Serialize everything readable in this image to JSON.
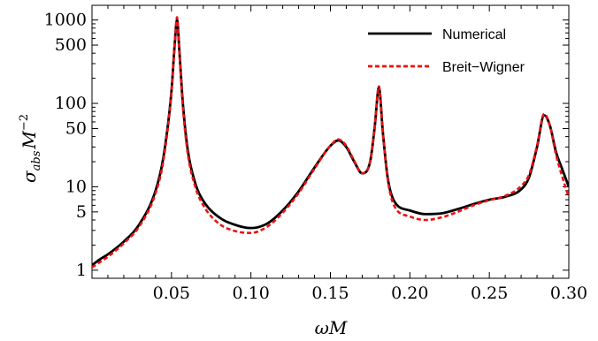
{
  "chart_data": {
    "type": "line",
    "title": "",
    "xlabel": "ωM",
    "ylabel_parts": {
      "base": "σ",
      "sub": "abs",
      "mid": "M",
      "sup": "−2"
    },
    "x_scale": "linear",
    "y_scale": "log",
    "xlim": [
      0.0,
      0.3
    ],
    "ylim": [
      0.8,
      1500
    ],
    "x_ticks": [
      0.05,
      0.1,
      0.15,
      0.2,
      0.25,
      0.3
    ],
    "x_tick_labels": [
      "0.05",
      "0.10",
      "0.15",
      "0.20",
      "0.25",
      "0.30"
    ],
    "y_ticks": [
      1,
      5,
      10,
      50,
      100,
      500,
      1000
    ],
    "y_tick_labels": [
      "1",
      "5",
      "10",
      "50",
      "100",
      "500",
      "1000"
    ],
    "legend_position": "top-right",
    "series": [
      {
        "name": "Numerical",
        "color": "#000000",
        "style": "solid",
        "x": [
          0.0,
          0.005,
          0.01,
          0.02,
          0.03,
          0.04,
          0.045,
          0.05,
          0.052,
          0.0535,
          0.055,
          0.057,
          0.06,
          0.065,
          0.07,
          0.08,
          0.09,
          0.1,
          0.11,
          0.12,
          0.13,
          0.14,
          0.15,
          0.155,
          0.16,
          0.165,
          0.17,
          0.175,
          0.178,
          0.1805,
          0.183,
          0.186,
          0.19,
          0.2,
          0.21,
          0.22,
          0.23,
          0.24,
          0.25,
          0.26,
          0.27,
          0.275,
          0.28,
          0.2845,
          0.288,
          0.292,
          0.296,
          0.3
        ],
        "y": [
          1.15,
          1.35,
          1.55,
          2.2,
          3.6,
          9.0,
          23,
          140,
          500,
          1000,
          420,
          110,
          30,
          11,
          6.8,
          4.3,
          3.5,
          3.2,
          3.6,
          5.2,
          8.8,
          17,
          31,
          36,
          30,
          20,
          14.5,
          20,
          55,
          155,
          45,
          13,
          6.8,
          5.2,
          4.7,
          4.8,
          5.4,
          6.2,
          7.0,
          7.6,
          9.3,
          13,
          30,
          72,
          55,
          26,
          16,
          10
        ]
      },
      {
        "name": "Breit−Wigner",
        "color": "#ee1111",
        "style": "dashed",
        "x": [
          0.0,
          0.005,
          0.01,
          0.02,
          0.03,
          0.04,
          0.045,
          0.05,
          0.052,
          0.0535,
          0.055,
          0.057,
          0.06,
          0.065,
          0.07,
          0.08,
          0.09,
          0.1,
          0.11,
          0.12,
          0.13,
          0.14,
          0.15,
          0.155,
          0.16,
          0.165,
          0.17,
          0.175,
          0.178,
          0.1805,
          0.183,
          0.186,
          0.19,
          0.2,
          0.21,
          0.22,
          0.23,
          0.24,
          0.25,
          0.26,
          0.27,
          0.275,
          0.28,
          0.2845,
          0.288,
          0.292,
          0.296,
          0.3
        ],
        "y": [
          1.08,
          1.25,
          1.45,
          2.1,
          3.4,
          8.4,
          21,
          135,
          500,
          1080,
          400,
          100,
          27,
          10,
          6.0,
          3.6,
          2.95,
          2.8,
          3.3,
          4.9,
          8.4,
          16.5,
          31,
          37,
          31,
          20.5,
          14.5,
          20,
          55,
          160,
          45,
          12.5,
          6.0,
          4.4,
          4.0,
          4.3,
          5.0,
          6.0,
          6.9,
          7.8,
          10.2,
          14,
          31,
          75,
          55,
          24,
          13,
          7.5
        ]
      }
    ]
  }
}
